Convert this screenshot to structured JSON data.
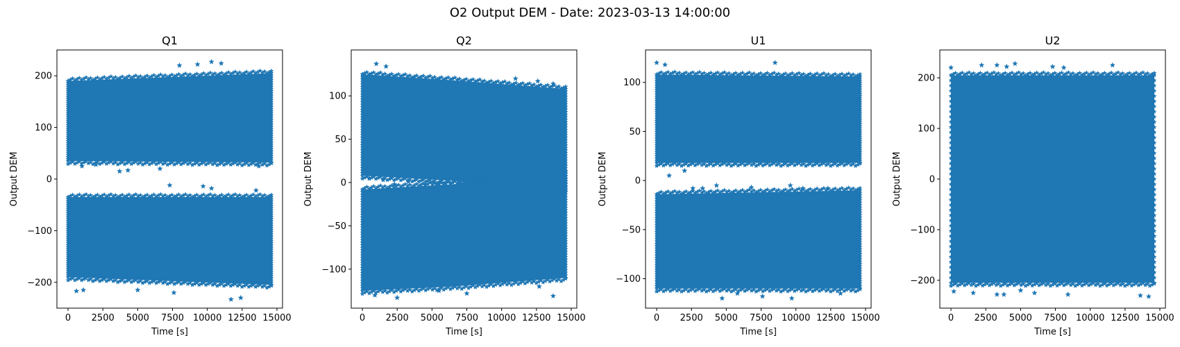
{
  "figure": {
    "suptitle": "O2 Output DEM - Date: 2023-03-13 14:00:00",
    "marker_color": "#1f77b4",
    "marker": "star"
  },
  "chart_data": [
    {
      "type": "scatter",
      "title": "Q1",
      "xlabel": "Time [s]",
      "ylabel": "Output DEM",
      "xlim": [
        -800,
        15400
      ],
      "ylim": [
        -250,
        250
      ],
      "xticks": [
        0,
        2500,
        5000,
        7500,
        10000,
        12500,
        15000
      ],
      "yticks": [
        -200,
        -100,
        0,
        100,
        200
      ],
      "bands": [
        {
          "x": [
            0,
            14600
          ],
          "y_low": [
            35,
            32
          ],
          "y_high": [
            190,
            205
          ]
        },
        {
          "x": [
            0,
            14600
          ],
          "y_low": [
            -190,
            -205
          ],
          "y_high": [
            -35,
            -35
          ]
        }
      ],
      "outliers": [
        {
          "x": 1000,
          "y": 25
        },
        {
          "x": 2000,
          "y": 28
        },
        {
          "x": 3700,
          "y": 15
        },
        {
          "x": 4300,
          "y": 17
        },
        {
          "x": 6600,
          "y": 20
        },
        {
          "x": 13700,
          "y": 25
        },
        {
          "x": 7300,
          "y": -12
        },
        {
          "x": 9700,
          "y": -14
        },
        {
          "x": 10300,
          "y": -18
        },
        {
          "x": 13500,
          "y": -22
        },
        {
          "x": 600,
          "y": -217
        },
        {
          "x": 1100,
          "y": -215
        },
        {
          "x": 5000,
          "y": -215
        },
        {
          "x": 7600,
          "y": -220
        },
        {
          "x": 11700,
          "y": -233
        },
        {
          "x": 12400,
          "y": -230
        },
        {
          "x": 8000,
          "y": 220
        },
        {
          "x": 9300,
          "y": 222
        },
        {
          "x": 10300,
          "y": 227
        },
        {
          "x": 11000,
          "y": 224
        }
      ]
    },
    {
      "type": "scatter",
      "title": "Q2",
      "xlabel": "Time [s]",
      "ylabel": "Output DEM",
      "xlim": [
        -800,
        15400
      ],
      "ylim": [
        -145,
        153
      ],
      "xticks": [
        0,
        2500,
        5000,
        7500,
        10000,
        12500,
        15000
      ],
      "yticks": [
        -100,
        -50,
        0,
        50,
        100
      ],
      "bands": [
        {
          "x": [
            0,
            6500,
            14600
          ],
          "y_low": [
            8,
            2,
            -10
          ],
          "y_high": [
            125,
            118,
            108
          ]
        },
        {
          "x": [
            0,
            6500,
            14600
          ],
          "y_low": [
            -125,
            -120,
            -110
          ],
          "y_high": [
            -8,
            -2,
            10
          ]
        }
      ],
      "outliers": [
        {
          "x": 1000,
          "y": 137
        },
        {
          "x": 1700,
          "y": 134
        },
        {
          "x": 11000,
          "y": 120
        },
        {
          "x": 12600,
          "y": 117
        },
        {
          "x": 13700,
          "y": 114
        },
        {
          "x": 500,
          "y": 5
        },
        {
          "x": 1500,
          "y": 3
        },
        {
          "x": 2300,
          "y": -2
        },
        {
          "x": 3300,
          "y": 1
        },
        {
          "x": 4500,
          "y": -3
        },
        {
          "x": 900,
          "y": -130
        },
        {
          "x": 2500,
          "y": -133
        },
        {
          "x": 5500,
          "y": -125
        },
        {
          "x": 7500,
          "y": -128
        },
        {
          "x": 12700,
          "y": -120
        },
        {
          "x": 13700,
          "y": -131
        }
      ]
    },
    {
      "type": "scatter",
      "title": "U1",
      "xlabel": "Time [s]",
      "ylabel": "Output DEM",
      "xlim": [
        -800,
        15400
      ],
      "ylim": [
        -130,
        133
      ],
      "xticks": [
        0,
        2500,
        5000,
        7500,
        10000,
        12500,
        15000
      ],
      "yticks": [
        -100,
        -50,
        0,
        50,
        100
      ],
      "bands": [
        {
          "x": [
            0,
            14600
          ],
          "y_low": [
            18,
            18
          ],
          "y_high": [
            108,
            106
          ]
        },
        {
          "x": [
            0,
            14600
          ],
          "y_low": [
            -110,
            -110
          ],
          "y_high": [
            -14,
            -10
          ]
        }
      ],
      "outliers": [
        {
          "x": 0,
          "y": 120
        },
        {
          "x": 600,
          "y": 118
        },
        {
          "x": 8500,
          "y": 120
        },
        {
          "x": 900,
          "y": 5
        },
        {
          "x": 2000,
          "y": 10
        },
        {
          "x": 2600,
          "y": -8
        },
        {
          "x": 3300,
          "y": -8
        },
        {
          "x": 4300,
          "y": -5
        },
        {
          "x": 6800,
          "y": -7
        },
        {
          "x": 9600,
          "y": -5
        },
        {
          "x": 10500,
          "y": -8
        },
        {
          "x": 12300,
          "y": -8
        },
        {
          "x": 4700,
          "y": -120
        },
        {
          "x": 5800,
          "y": -115
        },
        {
          "x": 7600,
          "y": -118
        },
        {
          "x": 9700,
          "y": -120
        },
        {
          "x": 13200,
          "y": -115
        }
      ]
    },
    {
      "type": "scatter",
      "title": "U2",
      "xlabel": "Time [s]",
      "ylabel": "Output DEM",
      "xlim": [
        -800,
        15400
      ],
      "ylim": [
        -255,
        255
      ],
      "xticks": [
        0,
        2500,
        5000,
        7500,
        10000,
        12500,
        15000
      ],
      "yticks": [
        -200,
        -100,
        0,
        100,
        200
      ],
      "bands": [
        {
          "x": [
            0,
            14600
          ],
          "y_low": [
            -205,
            -205
          ],
          "y_high": [
            205,
            205
          ]
        }
      ],
      "outliers": [
        {
          "x": 0,
          "y": 220
        },
        {
          "x": 2200,
          "y": 225
        },
        {
          "x": 3300,
          "y": 225
        },
        {
          "x": 4000,
          "y": 222
        },
        {
          "x": 4600,
          "y": 228
        },
        {
          "x": 7300,
          "y": 222
        },
        {
          "x": 8100,
          "y": 220
        },
        {
          "x": 11600,
          "y": 225
        },
        {
          "x": 200,
          "y": -222
        },
        {
          "x": 1600,
          "y": -225
        },
        {
          "x": 3300,
          "y": -228
        },
        {
          "x": 3800,
          "y": -228
        },
        {
          "x": 5000,
          "y": -220
        },
        {
          "x": 6000,
          "y": -225
        },
        {
          "x": 8400,
          "y": -228
        },
        {
          "x": 13600,
          "y": -230
        },
        {
          "x": 14200,
          "y": -232
        }
      ]
    }
  ]
}
